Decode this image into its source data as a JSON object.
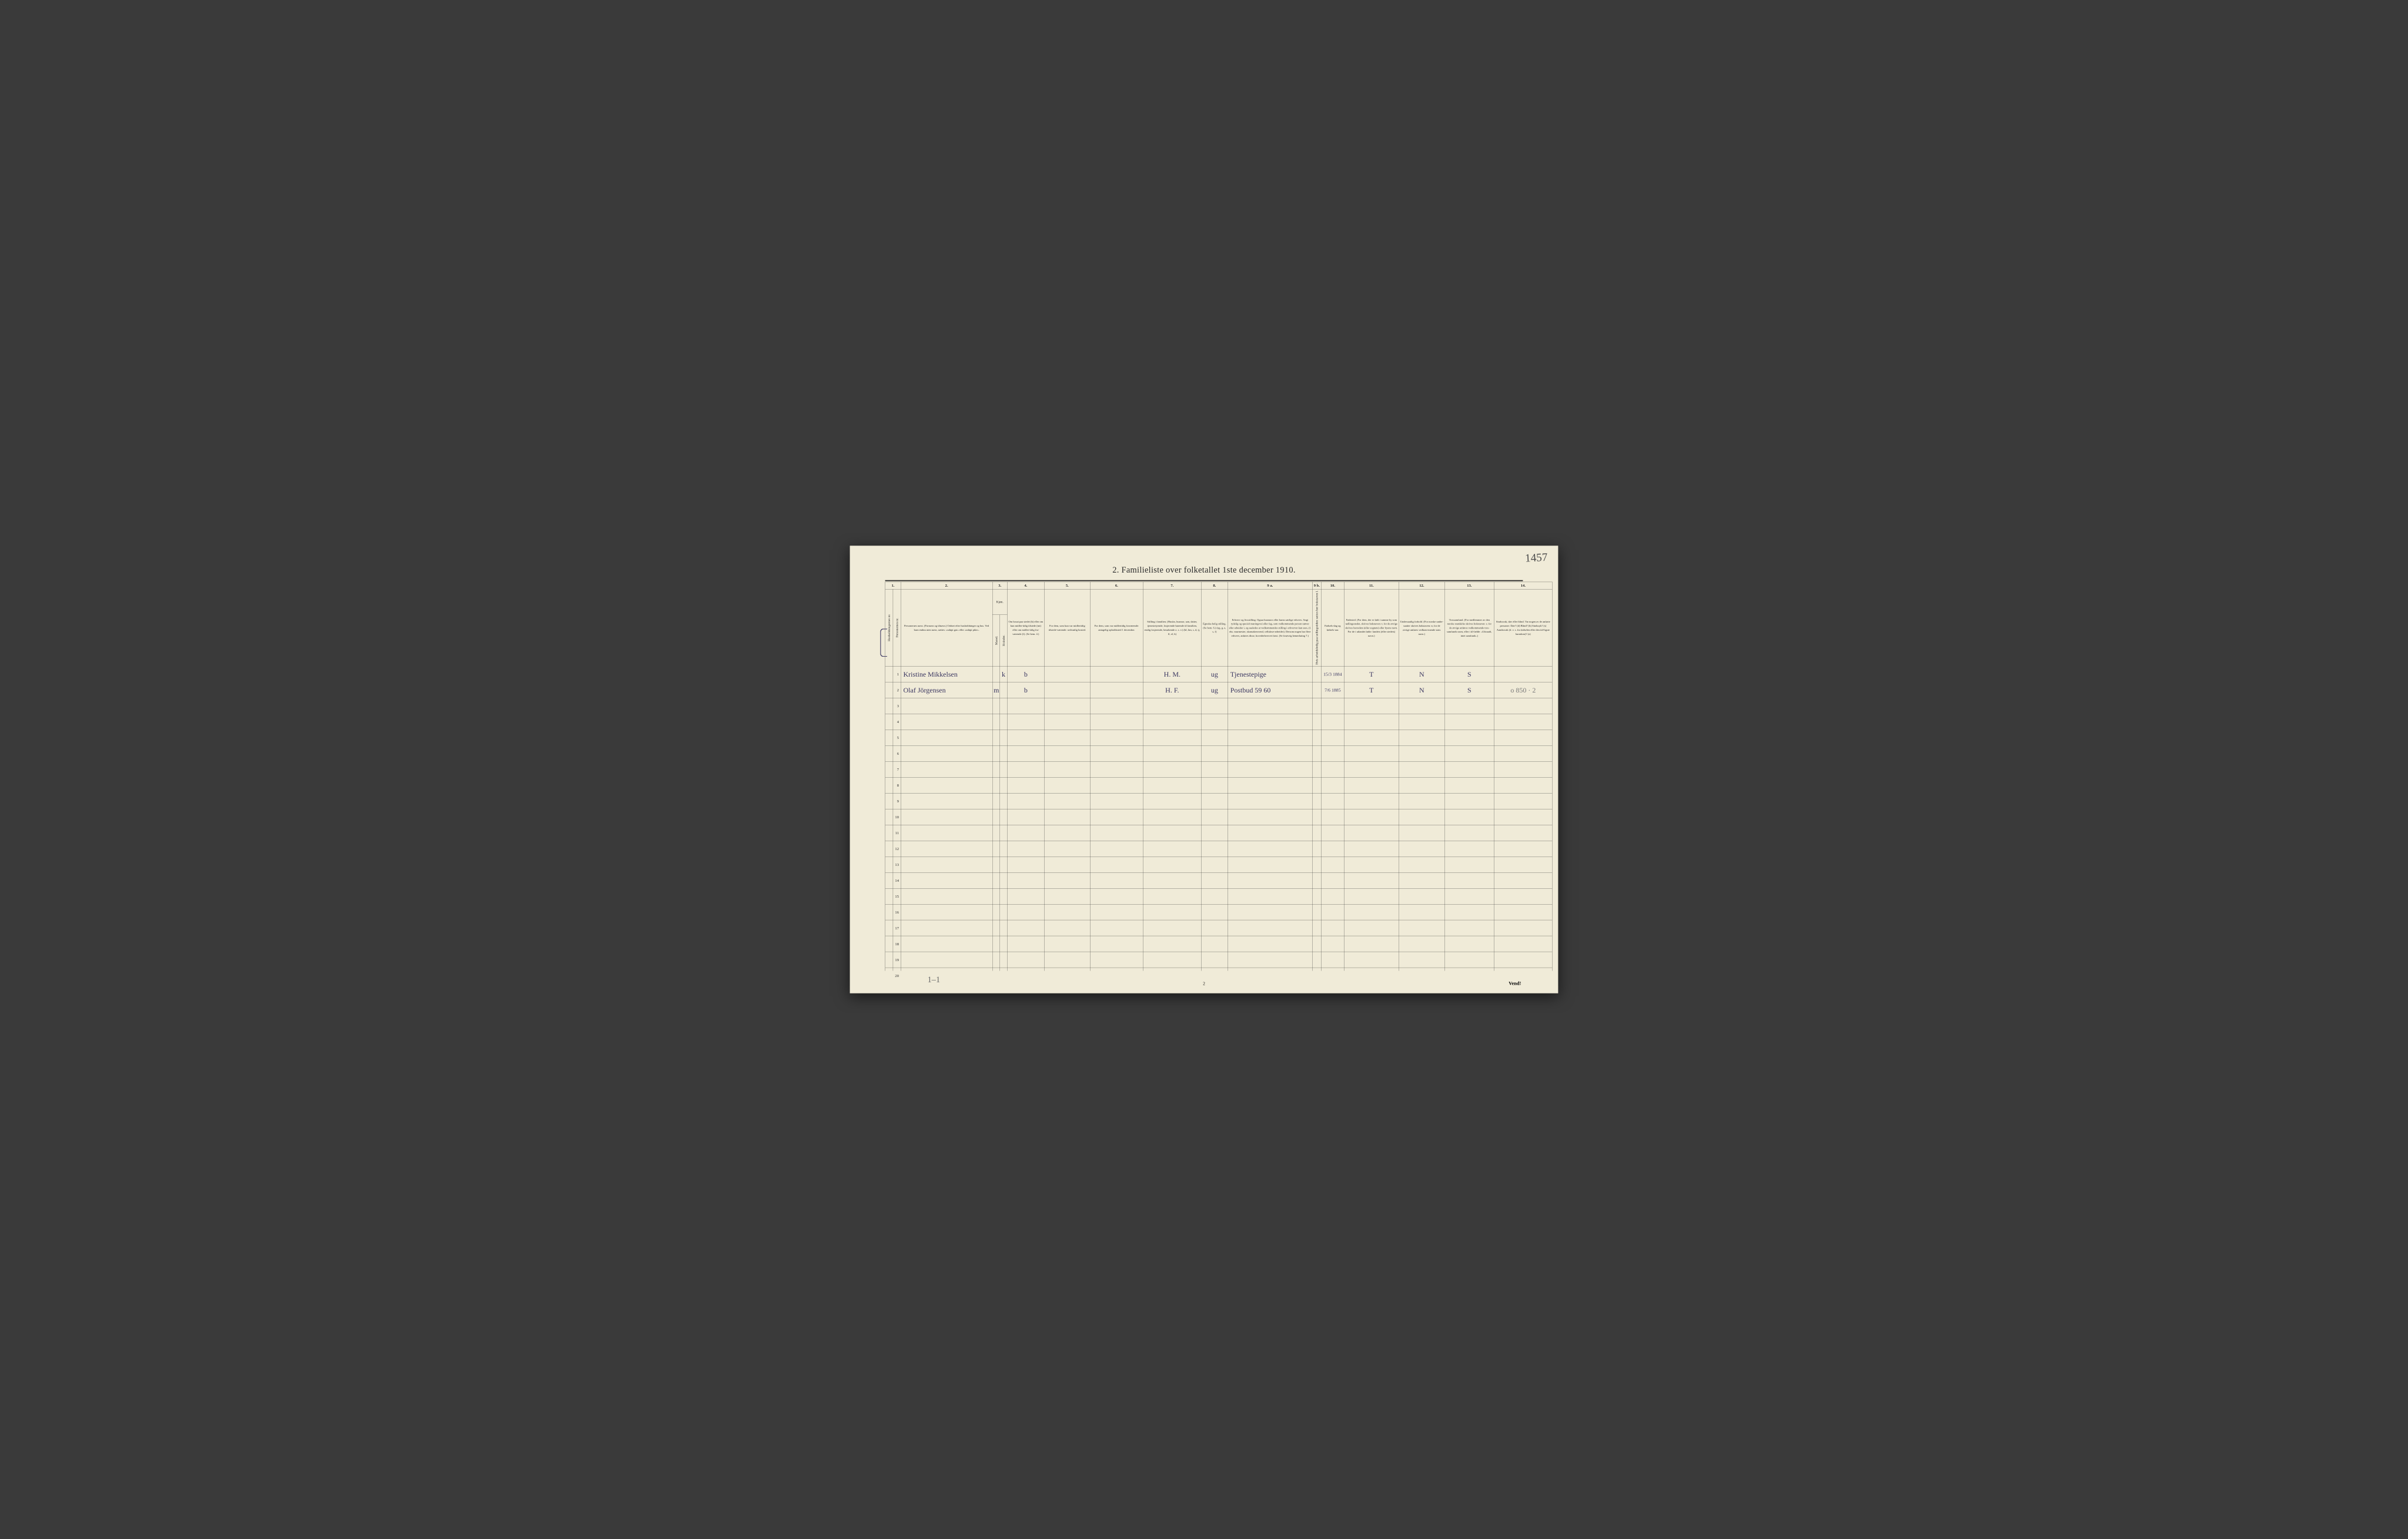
{
  "page": {
    "title": "2.  Familieliste over folketallet 1ste december 1910.",
    "handwritten_pageno": "1457",
    "footer_number": "2",
    "vend": "Vend!",
    "footer_hand": "1–1"
  },
  "colors": {
    "paper": "#f0ebd8",
    "ink": "#2a2a2a",
    "hand_ink": "#3a3660",
    "pencil": "#7a7a7a",
    "background": "#3a3a3a"
  },
  "columns": {
    "numbers": [
      "1.",
      "",
      "2.",
      "3.",
      "",
      "4.",
      "5.",
      "6.",
      "7.",
      "8.",
      "9 a.",
      "9 b.",
      "10.",
      "11.",
      "12.",
      "13.",
      "14."
    ],
    "headers": {
      "hus": "Husholdningernes nr.",
      "pers": "Personernes nr.",
      "navn": "Personernes navn.\n(Fornavn og tilnavn.)\nOrdnet efter husholdninger og hus.\nVed barn endnu uten navn, sættes: «udøpt gut» eller «udøpt pike».",
      "kjon": "Kjøn.",
      "m": "Mænd.",
      "k": "Kvinder.",
      "bosat": "Om bosat paa stedet (b) eller om kun midler-tidig tilstede (mt) eller om midler-tidig fra-værende (f). (Se bem. 4.)",
      "midtil": "For dem, som kun var midlertidig tilstede-værende:\nsedvanlig bosted.",
      "midfra": "For dem, som var midlertidig fraværende:\nantagelig opholdssted 1 december.",
      "stilling": "Stilling i familien.\n(Husfar, husmor, søn, datter, tjenestetyende, losjerende hørende til familien, enslig losjerende, besøkende o. s. v.)\n(hf, hm, s, d, tj, fl, el, b)",
      "egte": "Egteska-belig stilling. (Se bem. 6.)\n(ug, g, e, s, f)",
      "erhverv": "Erhverv og livsstilling.\nOgsaa husmors eller barns særlige erhverv. Angi tydelig og specielt næringsvei eller fag, som vedkommende person utøver eller arbeider i, og saaledes at vedkommendes stilling i erhvervet kan sees, (f. eks. murmester, skomakersvend, cellulose-arbeider). Dersom nogen har flere erhverv, anføres disse, hovederhvervet først.\n(Se forøvrig bemerkning 7.)",
      "ledig": "Hvis arbeidsledig paa tællingstiden sættes her bokstaven l.",
      "fdag": "Fødsels-dag og fødsels-aar.",
      "fsted": "Fødested.\n(For dem, der er født i samme by som tællingsstedet, skrives bokstaven: t; for de øvrige skrives herredets (eller sognets) eller byens navn. For de i utlandet fødte: landets (eller stedets) navn.)",
      "under": "Undersaatlig forhold.\n(For norske under-saatter skrives bokstaven: n; for de øvrige anføres vedkom-mende stats navn.)",
      "tros": "Trossamfund.\n(For medlemmer av den norske statskirke skrives bokstaven: s; for de øvrige anføres vedkommende tros-samfunds navn, eller i til-fælde: «Uttraadt, intet samfund».)",
      "sinds": "Sindssvak, døv eller blind.\nVar nogen av de anførte personer:\nDøv?        (d)\nBlind?       (b)\nSindssyk?  (s)\nAandssvak (d. v. s. fra fødselen eller den tid-ligste barndom)?  (a)",
      "mk_foot": "m.  k."
    }
  },
  "rows": [
    {
      "n": "1",
      "navn": "Kristine Mikkelsen",
      "m": "",
      "k": "k",
      "bosat": "b",
      "midtil": "",
      "midfra": "",
      "stilling": "H. M.",
      "egte": "ug",
      "erhverv": "Tjenestepige",
      "ledig": "",
      "fdag": "15/3 1884",
      "fsted": "T",
      "under": "N",
      "tros": "S",
      "sinds": ""
    },
    {
      "n": "2",
      "navn": "Olaf Jörgensen",
      "m": "m",
      "k": "",
      "bosat": "b",
      "midtil": "",
      "midfra": "",
      "stilling": "H. F.",
      "egte": "ug",
      "erhverv": "Postbud  59 60",
      "ledig": "",
      "fdag": "7/6 1885",
      "fsted": "T",
      "under": "N",
      "tros": "S",
      "sinds": "o 850 · 2"
    },
    {
      "n": "3"
    },
    {
      "n": "4"
    },
    {
      "n": "5"
    },
    {
      "n": "6"
    },
    {
      "n": "7"
    },
    {
      "n": "8"
    },
    {
      "n": "9"
    },
    {
      "n": "10"
    },
    {
      "n": "11"
    },
    {
      "n": "12"
    },
    {
      "n": "13"
    },
    {
      "n": "14"
    },
    {
      "n": "15"
    },
    {
      "n": "16"
    },
    {
      "n": "17"
    },
    {
      "n": "18"
    },
    {
      "n": "19"
    },
    {
      "n": "20"
    }
  ]
}
